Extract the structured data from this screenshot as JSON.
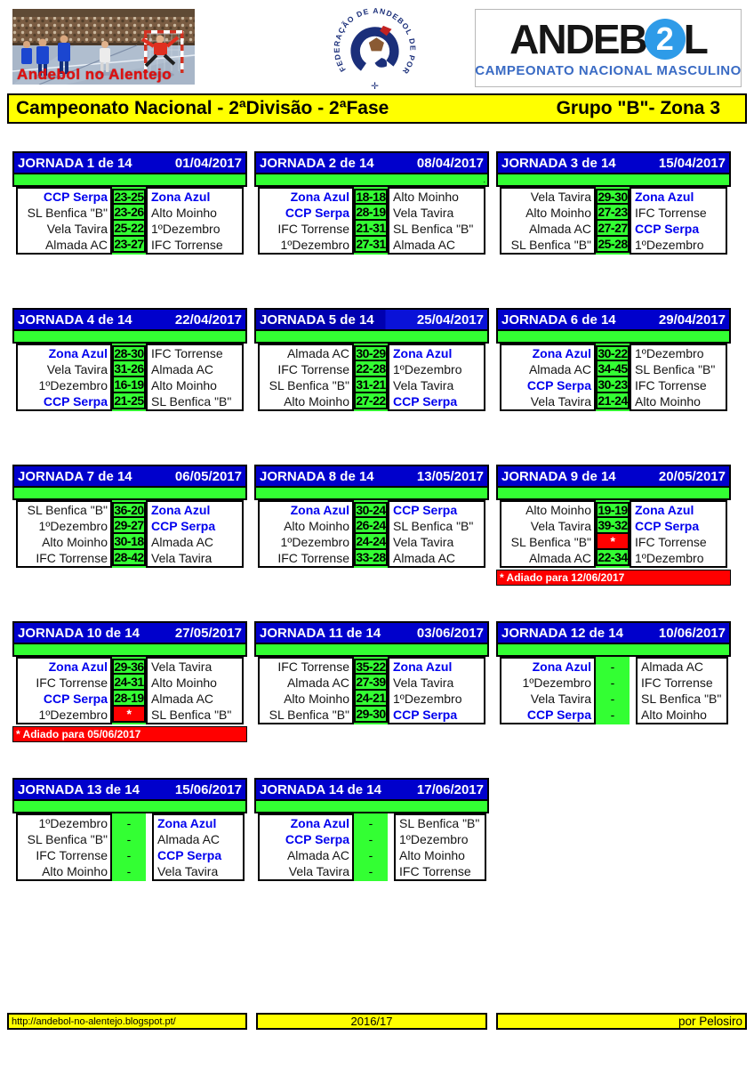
{
  "header": {
    "photo_caption": "Andebol no Alentejo",
    "federation_text": "FEDERAÇÃO DE ANDEBOL DE PORTUGAL",
    "logo_part1": "ANDEB",
    "logo_digit": "2",
    "logo_part2": "L",
    "logo_subtitle": "CAMPEONATO NACIONAL MASCULINO"
  },
  "title_bar": {
    "left": "Campeonato Nacional - 2ªDivisão - 2ªFase",
    "right": "Grupo \"B\"- Zona 3"
  },
  "colors": {
    "jornada_header_blue": "#0000CC",
    "green": "#33FF33",
    "highlight_team_blue": "#0000EE",
    "postponed_red": "#FF0000",
    "yellow": "#FFFF00",
    "brand_circle_blue": "#2E9BE8",
    "brand_subtitle_blue": "#3A6BC4"
  },
  "highlight_teams": [
    "CCP Serpa",
    "Zona Azul"
  ],
  "jornadas": [
    {
      "label": "JORNADA 1 de 14",
      "date": "01/04/2017",
      "matches": [
        {
          "home": "CCP Serpa",
          "score": "23-25",
          "away": "Zona Azul"
        },
        {
          "home": "SL Benfica \"B\"",
          "score": "23-26",
          "away": "Alto Moinho"
        },
        {
          "home": "Vela Tavira",
          "score": "25-22",
          "away": "1ºDezembro"
        },
        {
          "home": "Almada AC",
          "score": "23-27",
          "away": "IFC Torrense"
        }
      ]
    },
    {
      "label": "JORNADA 2 de 14",
      "date": "08/04/2017",
      "spacer_text": ".",
      "matches": [
        {
          "home": "Zona Azul",
          "score": "18-18",
          "away": "Alto Moinho"
        },
        {
          "home": "CCP Serpa",
          "score": "28-19",
          "away": "Vela Tavira"
        },
        {
          "home": "IFC Torrense",
          "score": "21-31",
          "away": "SL Benfica \"B\""
        },
        {
          "home": "1ºDezembro",
          "score": "27-31",
          "away": "Almada AC"
        }
      ]
    },
    {
      "label": "JORNADA 3 de 14",
      "date": "15/04/2017",
      "matches": [
        {
          "home": "Vela Tavira",
          "score": "29-30",
          "away": "Zona Azul"
        },
        {
          "home": "Alto Moinho",
          "score": "27-23",
          "away": "IFC Torrense"
        },
        {
          "home": "Almada AC",
          "score": "27-27",
          "away": "CCP Serpa"
        },
        {
          "home": "SL Benfica \"B\"",
          "score": "25-28",
          "away": "1ºDezembro"
        }
      ]
    },
    {
      "label": "JORNADA 4 de 14",
      "date": "22/04/2017",
      "matches": [
        {
          "home": "Zona Azul",
          "score": "28-30",
          "away": "IFC Torrense"
        },
        {
          "home": "Vela Tavira",
          "score": "31-26",
          "away": "Almada AC"
        },
        {
          "home": "1ºDezembro",
          "score": "16-19",
          "away": "Alto Moinho"
        },
        {
          "home": "CCP Serpa",
          "score": "21-25",
          "away": "SL Benfica \"B\""
        }
      ]
    },
    {
      "label": "JORNADA 5 de 14",
      "date": "25/04/2017",
      "selected": true,
      "matches": [
        {
          "home": "Almada AC",
          "score": "30-29",
          "away": "Zona Azul"
        },
        {
          "home": "IFC Torrense",
          "score": "22-28",
          "away": "1ºDezembro"
        },
        {
          "home": "SL Benfica \"B\"",
          "score": "31-21",
          "away": "Vela Tavira"
        },
        {
          "home": "Alto Moinho",
          "score": "27-22",
          "away": "CCP Serpa"
        }
      ]
    },
    {
      "label": "JORNADA 6 de 14",
      "date": "29/04/2017",
      "matches": [
        {
          "home": "Zona Azul",
          "score": "30-22",
          "away": "1ºDezembro"
        },
        {
          "home": "Almada AC",
          "score": "34-45",
          "away": "SL Benfica \"B\""
        },
        {
          "home": "CCP Serpa",
          "score": "30-23",
          "away": "IFC Torrense"
        },
        {
          "home": "Vela Tavira",
          "score": "21-24",
          "away": "Alto Moinho"
        }
      ]
    },
    {
      "label": "JORNADA 7 de 14",
      "date": "06/05/2017",
      "matches": [
        {
          "home": "SL Benfica \"B\"",
          "score": "36-20",
          "away": "Zona Azul"
        },
        {
          "home": "1ºDezembro",
          "score": "29-27",
          "away": "CCP Serpa"
        },
        {
          "home": "Alto Moinho",
          "score": "30-18",
          "away": "Almada AC"
        },
        {
          "home": "IFC Torrense",
          "score": "28-42",
          "away": "Vela Tavira"
        }
      ]
    },
    {
      "label": "JORNADA 8 de 14",
      "date": "13/05/2017",
      "matches": [
        {
          "home": "Zona Azul",
          "score": "30-24",
          "away": "CCP Serpa"
        },
        {
          "home": "Alto Moinho",
          "score": "26-24",
          "away": "SL Benfica \"B\""
        },
        {
          "home": "1ºDezembro",
          "score": "24-24",
          "away": "Vela Tavira"
        },
        {
          "home": "IFC Torrense",
          "score": "33-28",
          "away": "Almada AC"
        }
      ]
    },
    {
      "label": "JORNADA 9 de 14",
      "date": "20/05/2017",
      "note": "* Adiado para 12/06/2017",
      "matches": [
        {
          "home": "Alto Moinho",
          "score": "19-19",
          "away": "Zona Azul"
        },
        {
          "home": "Vela Tavira",
          "score": "39-32",
          "away": "CCP Serpa"
        },
        {
          "home": "SL Benfica \"B\"",
          "score": "*",
          "away": "IFC Torrense"
        },
        {
          "home": "Almada AC",
          "score": "22-34",
          "away": "1ºDezembro"
        }
      ]
    },
    {
      "label": "JORNADA 10 de 14",
      "date": "27/05/2017",
      "note": "* Adiado para 05/06/2017",
      "matches": [
        {
          "home": "Zona Azul",
          "score": "29-36",
          "away": "Vela Tavira"
        },
        {
          "home": "IFC Torrense",
          "score": "24-31",
          "away": "Alto Moinho"
        },
        {
          "home": "CCP Serpa",
          "score": "28-19",
          "away": "Almada AC"
        },
        {
          "home": "1ºDezembro",
          "score": "*",
          "away": "SL Benfica \"B\""
        }
      ]
    },
    {
      "label": "JORNADA 11 de 14",
      "date": "03/06/2017",
      "matches": [
        {
          "home": "IFC Torrense",
          "score": "35-22",
          "away": "Zona Azul"
        },
        {
          "home": "Almada AC",
          "score": "27-39",
          "away": "Vela Tavira"
        },
        {
          "home": "Alto Moinho",
          "score": "24-21",
          "away": "1ºDezembro"
        },
        {
          "home": "SL Benfica \"B\"",
          "score": "29-30",
          "away": "CCP Serpa"
        }
      ]
    },
    {
      "label": "JORNADA 12 de 14",
      "date": "10/06/2017",
      "matches": [
        {
          "home": "Zona Azul",
          "score": "-",
          "away": "Almada AC"
        },
        {
          "home": "1ºDezembro",
          "score": "-",
          "away": "IFC Torrense"
        },
        {
          "home": "Vela Tavira",
          "score": "-",
          "away": "SL Benfica \"B\""
        },
        {
          "home": "CCP Serpa",
          "score": "-",
          "away": "Alto Moinho"
        }
      ]
    },
    {
      "label": "JORNADA 13 de 14",
      "date": "15/06/2017",
      "matches": [
        {
          "home": "1ºDezembro",
          "score": "-",
          "away": "Zona Azul"
        },
        {
          "home": "SL Benfica \"B\"",
          "score": "-",
          "away": "Almada AC"
        },
        {
          "home": "IFC Torrense",
          "score": "-",
          "away": "CCP Serpa"
        },
        {
          "home": "Alto Moinho",
          "score": "-",
          "away": "Vela Tavira"
        }
      ]
    },
    {
      "label": "JORNADA 14 de 14",
      "date": "17/06/2017",
      "matches": [
        {
          "home": "Zona Azul",
          "score": "-",
          "away": "SL Benfica \"B\""
        },
        {
          "home": "CCP Serpa",
          "score": "-",
          "away": "1ºDezembro"
        },
        {
          "home": "Almada AC",
          "score": "-",
          "away": "Alto Moinho"
        },
        {
          "home": "Vela Tavira",
          "score": "-",
          "away": "IFC Torrense"
        }
      ]
    }
  ],
  "footer": {
    "url": "http://andebol-no-alentejo.blogspot.pt/",
    "season": "2016/17",
    "credit": "por Pelosiro"
  }
}
